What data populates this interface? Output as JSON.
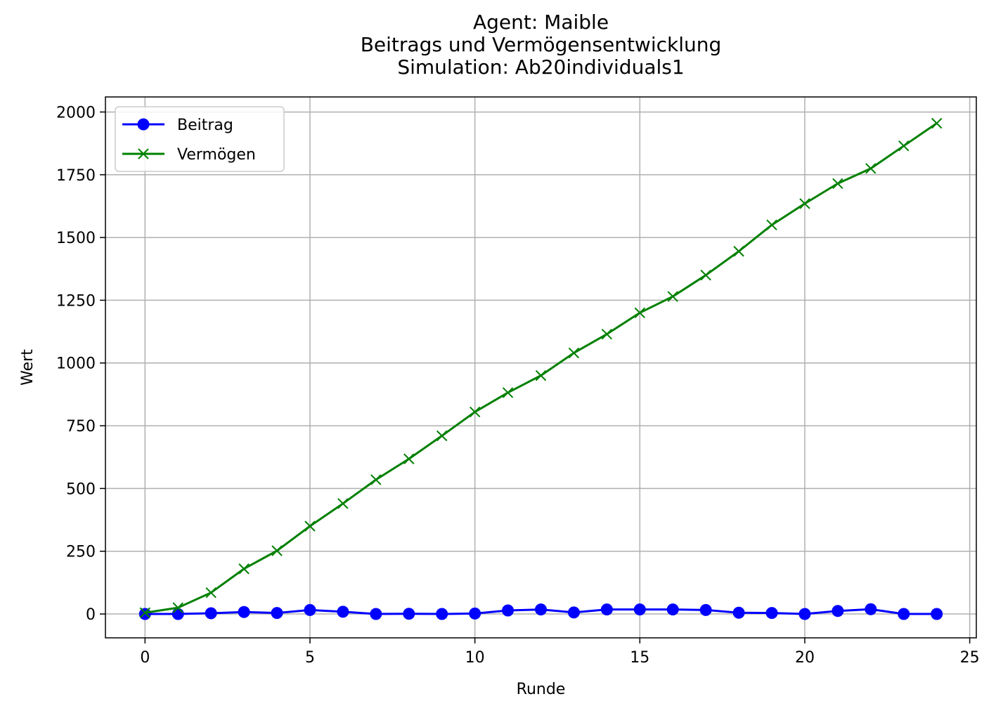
{
  "chart_data": {
    "type": "line",
    "title": [
      "Agent: Maible",
      "Beitrags und Vermögensentwicklung",
      "Simulation: Ab20individuals1"
    ],
    "xlabel": "Runde",
    "ylabel": "Wert",
    "xlim": [
      -1.2,
      25.2
    ],
    "ylim": [
      -95,
      2060
    ],
    "xticks": [
      0,
      5,
      10,
      15,
      20,
      25
    ],
    "yticks": [
      0,
      250,
      500,
      750,
      1000,
      1250,
      1500,
      1750,
      2000
    ],
    "grid": true,
    "legend": "top-left",
    "x": [
      0,
      1,
      2,
      3,
      4,
      5,
      6,
      7,
      8,
      9,
      10,
      11,
      12,
      13,
      14,
      15,
      16,
      17,
      18,
      19,
      20,
      21,
      22,
      23,
      24
    ],
    "series": [
      {
        "name": "Beitrag",
        "color": "#0000ff",
        "marker": "circle",
        "values": [
          0,
          0,
          3,
          8,
          4,
          16,
          9,
          0,
          1,
          0,
          2,
          14,
          18,
          6,
          18,
          18,
          18,
          16,
          5,
          4,
          0,
          12,
          19,
          0,
          0
        ]
      },
      {
        "name": "Vermögen",
        "color": "#008000",
        "marker": "x",
        "values": [
          5,
          25,
          85,
          180,
          252,
          350,
          440,
          535,
          618,
          710,
          805,
          882,
          950,
          1040,
          1115,
          1200,
          1265,
          1350,
          1445,
          1550,
          1635,
          1715,
          1775,
          1865,
          1955
        ]
      }
    ]
  }
}
